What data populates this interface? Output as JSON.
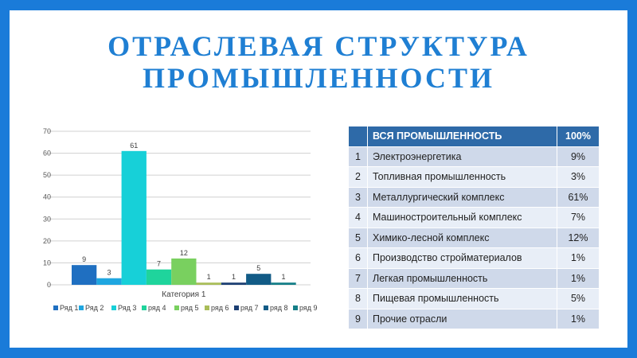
{
  "slide": {
    "title_line1": "ОТРАСЛЕВАЯ СТРУКТУРА",
    "title_line2": "ПРОМЫШЛЕННОСТИ"
  },
  "chart_data": {
    "type": "bar",
    "categories": [
      "Категория 1"
    ],
    "yticks": [
      0,
      10,
      20,
      30,
      40,
      50,
      60,
      70
    ],
    "ylim": [
      0,
      70
    ],
    "grid": true,
    "legend": "bottom",
    "series": [
      {
        "name": "Ряд 1",
        "values": [
          9
        ],
        "color": "#1f6fc1"
      },
      {
        "name": "Ряд 2",
        "values": [
          3
        ],
        "color": "#1fa6e0"
      },
      {
        "name": "Ряд 3",
        "values": [
          61
        ],
        "color": "#17d0d8"
      },
      {
        "name": "ряд 4",
        "values": [
          7
        ],
        "color": "#1fd49c"
      },
      {
        "name": "ряд 5",
        "values": [
          12
        ],
        "color": "#79d05f"
      },
      {
        "name": "ряд 6",
        "values": [
          1
        ],
        "color": "#a9bd59"
      },
      {
        "name": "ряд 7",
        "values": [
          1
        ],
        "color": "#1c3f73"
      },
      {
        "name": "ряд 8",
        "values": [
          5
        ],
        "color": "#125b86"
      },
      {
        "name": "ряд 9",
        "values": [
          1
        ],
        "color": "#147e87"
      }
    ]
  },
  "table": {
    "header": {
      "label": "ВСЯ ПРОМЫШЛЕННОСТЬ",
      "value": "100%"
    },
    "rows": [
      {
        "num": "1",
        "name": "Электроэнергетика",
        "value": "9%"
      },
      {
        "num": "2",
        "name": "Топливная промышленность",
        "value": "3%"
      },
      {
        "num": "3",
        "name": "Металлургический комплекс",
        "value": "61%"
      },
      {
        "num": "4",
        "name": "Машиностроительный комплекс",
        "value": "7%"
      },
      {
        "num": "5",
        "name": "Химико-лесной комплекс",
        "value": "12%"
      },
      {
        "num": "6",
        "name": "Производство стройматериалов",
        "value": "1%"
      },
      {
        "num": "7",
        "name": "Легкая промышленность",
        "value": "1%"
      },
      {
        "num": "8",
        "name": "Пищевая промышленность",
        "value": "5%"
      },
      {
        "num": "9",
        "name": "Прочие отрасли",
        "value": "1%"
      }
    ]
  }
}
